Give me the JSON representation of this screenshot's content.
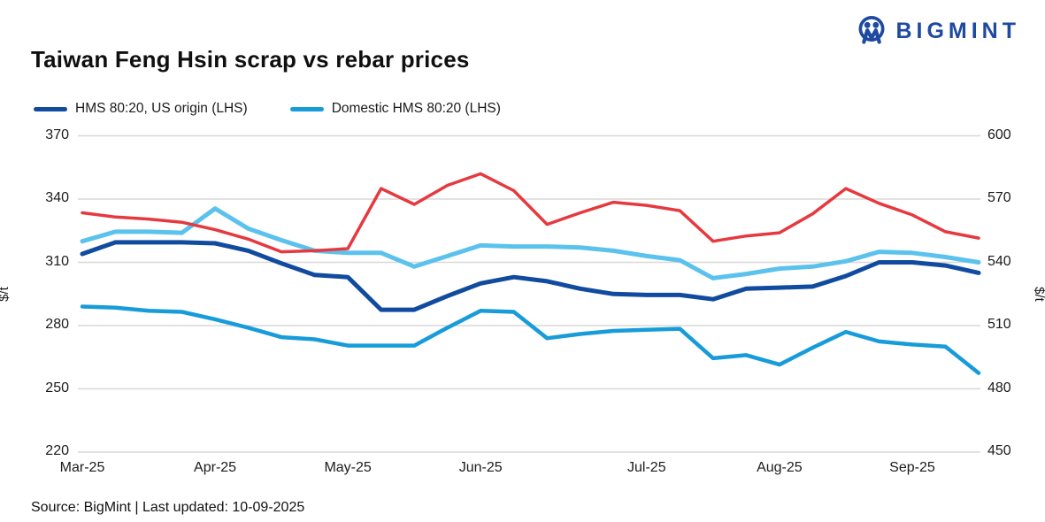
{
  "logo": {
    "text": "BIGMINT",
    "color": "#1E4A9F"
  },
  "title": "Taiwan Feng Hsin scrap vs rebar prices",
  "footer": "Source: BigMint |  Last updated: 10-09-2025",
  "chart_data": {
    "type": "line",
    "title": "Taiwan Feng Hsin scrap vs rebar prices",
    "x_unit": "weekly points, Mar-2025 to Sep-2025",
    "n_points": 28,
    "x_month_ticks": [
      {
        "label": "Mar-25",
        "week": 0
      },
      {
        "label": "Apr-25",
        "week": 4
      },
      {
        "label": "May-25",
        "week": 8
      },
      {
        "label": "Jun-25",
        "week": 12
      },
      {
        "label": "Jul-25",
        "week": 17
      },
      {
        "label": "Aug-25",
        "week": 21
      },
      {
        "label": "Sep-25",
        "week": 25
      }
    ],
    "ylabel_left": "$/t",
    "ylabel_right": "$/t",
    "ylim_left": [
      220,
      370
    ],
    "ylim_right": [
      450,
      600
    ],
    "yticks_left": [
      220,
      250,
      280,
      310,
      340,
      370
    ],
    "yticks_right": [
      450,
      480,
      510,
      540,
      570,
      600
    ],
    "grid_color": "#D8D8D8",
    "legend_position": "top-left",
    "series": [
      {
        "id": "light_blue_unlabeled",
        "name": "",
        "in_legend": false,
        "axis": "left",
        "color": "#5BC2ED",
        "width": 5,
        "values": [
          320,
          324.5,
          324.5,
          324,
          335.5,
          326,
          320.5,
          315.5,
          314.5,
          314.5,
          308,
          313,
          318,
          317.5,
          317.5,
          317,
          315.5,
          313,
          311,
          302.5,
          304.5,
          307,
          308,
          310.5,
          315,
          314.5,
          312.5,
          310
        ]
      },
      {
        "id": "red_rebar_rhs",
        "name": "",
        "in_legend": false,
        "axis": "right",
        "color": "#E6393F",
        "width": 3.5,
        "values": [
          563.5,
          561.5,
          560.5,
          559,
          555.5,
          551,
          545,
          545.5,
          546.5,
          575,
          567.5,
          576.5,
          582,
          574,
          558,
          563.5,
          568.5,
          567,
          564.5,
          550,
          552.5,
          554,
          563,
          575,
          568,
          562.5,
          554.5,
          551.5
        ]
      },
      {
        "id": "hms_us_origin_lhs",
        "name": "HMS 80:20, US origin (LHS)",
        "in_legend": true,
        "axis": "left",
        "color": "#114B9F",
        "width": 5,
        "values": [
          314,
          319.5,
          319.5,
          319.5,
          319,
          315.5,
          309.5,
          304,
          303,
          287.5,
          287.5,
          294,
          300,
          303,
          301,
          297.5,
          295,
          294.5,
          294.5,
          292.5,
          297.5,
          298,
          298.5,
          303.5,
          310,
          310,
          308.5,
          305
        ]
      },
      {
        "id": "domestic_hms_lhs",
        "name": "Domestic HMS 80:20 (LHS)",
        "in_legend": true,
        "axis": "left",
        "color": "#189CD9",
        "width": 4.5,
        "values": [
          289,
          288.5,
          287,
          286.5,
          283,
          279,
          274.5,
          273.5,
          270.5,
          270.5,
          270.5,
          279,
          287,
          286.5,
          274,
          276,
          277.5,
          278,
          278.5,
          264.5,
          266,
          261.5,
          269.5,
          277,
          272.5,
          271,
          270,
          257.5
        ]
      }
    ]
  }
}
